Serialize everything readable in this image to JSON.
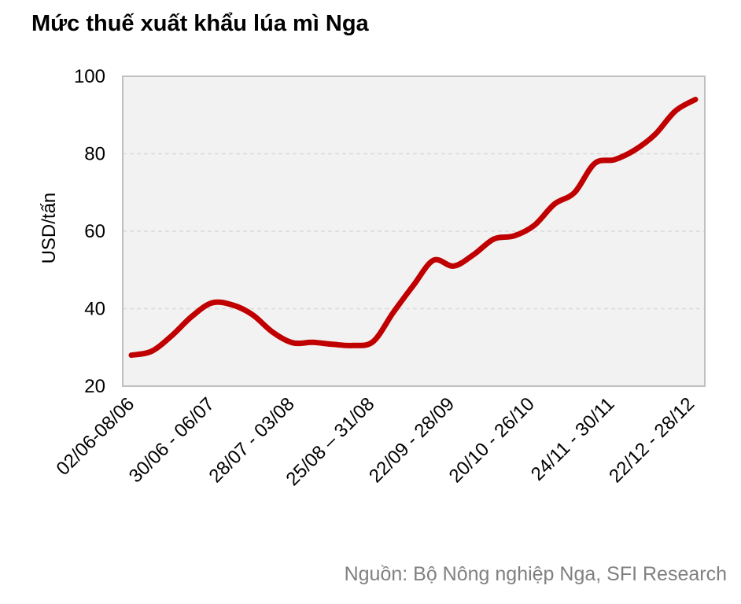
{
  "title": "Mức thuế xuất khẩu lúa mì Nga",
  "source": "Nguồn: Bộ Nông nghiệp Nga, SFI Research",
  "colors": {
    "line": "#c00000",
    "plot_background": "#f2f2f2",
    "grid": "#d9d9d9",
    "axis": "#bfbfbf"
  },
  "chart_data": {
    "type": "line",
    "title": "Mức thuế xuất khẩu lúa mì Nga",
    "xlabel": "",
    "ylabel": "USD/tấn",
    "ylim": [
      20,
      100
    ],
    "yticks": [
      20,
      40,
      60,
      80,
      100
    ],
    "grid": true,
    "x_tick_labels": [
      "02/06-08/06",
      "30/06 - 06/07",
      "28/07 - 03/08",
      "25/08 – 31/08",
      "22/09 - 28/09",
      "20/10 - 26/10",
      "24/11 - 30/11",
      "22/12 - 28/12"
    ],
    "series": [
      {
        "values": [
          28,
          29,
          33,
          38,
          41.5,
          41,
          38.5,
          34,
          31.2,
          31.3,
          30.8,
          30.5,
          31.5,
          39,
          46,
          52.5,
          51,
          54,
          58,
          58.8,
          61.5,
          67,
          70,
          77.5,
          78.5,
          81,
          85,
          91,
          94
        ]
      }
    ]
  }
}
